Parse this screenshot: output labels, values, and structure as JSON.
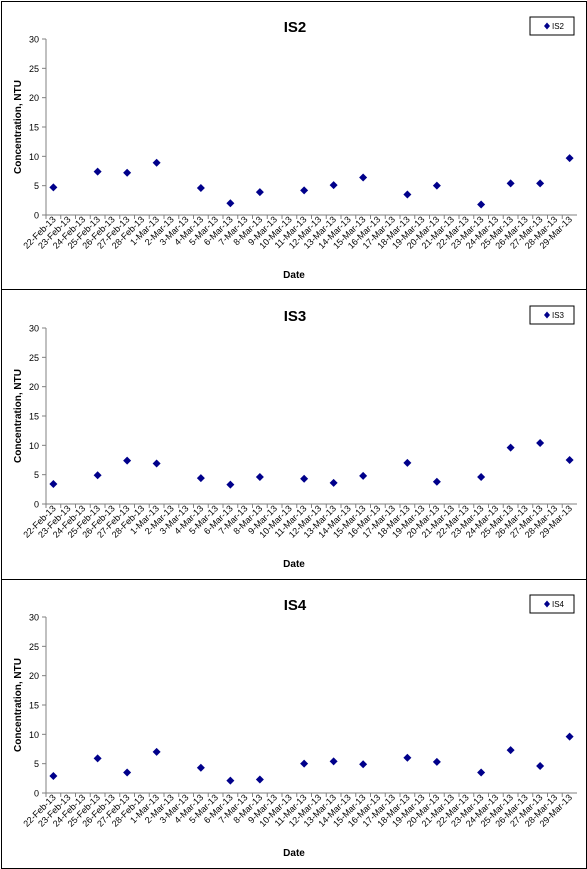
{
  "chart_data": [
    {
      "type": "scatter",
      "title": "IS2",
      "xlabel": "Date",
      "ylabel": "Concentration, NTU",
      "ylim": [
        0,
        30
      ],
      "y_ticks": [
        "0",
        "5",
        "10",
        "15",
        "20",
        "25",
        "30"
      ],
      "grid": false,
      "legend_position": "top-right",
      "series": [
        {
          "name": "IS2",
          "color": "#00008B",
          "points": [
            {
              "x": "22-Feb-13",
              "y": 4.7
            },
            {
              "x": "25-Feb-13",
              "y": 7.4
            },
            {
              "x": "27-Feb-13",
              "y": 7.2
            },
            {
              "x": "1-Mar-13",
              "y": 8.9
            },
            {
              "x": "4-Mar-13",
              "y": 4.6
            },
            {
              "x": "6-Mar-13",
              "y": 2.0
            },
            {
              "x": "8-Mar-13",
              "y": 3.9
            },
            {
              "x": "11-Mar-13",
              "y": 4.2
            },
            {
              "x": "13-Mar-13",
              "y": 5.1
            },
            {
              "x": "15-Mar-13",
              "y": 6.4
            },
            {
              "x": "18-Mar-13",
              "y": 3.5
            },
            {
              "x": "20-Mar-13",
              "y": 5.0
            },
            {
              "x": "23-Mar-13",
              "y": 1.8
            },
            {
              "x": "25-Mar-13",
              "y": 5.4
            },
            {
              "x": "27-Mar-13",
              "y": 5.4
            },
            {
              "x": "29-Mar-13",
              "y": 9.7
            }
          ]
        }
      ]
    },
    {
      "type": "scatter",
      "title": "IS3",
      "xlabel": "Date",
      "ylabel": "Concentration, NTU",
      "ylim": [
        0,
        30
      ],
      "y_ticks": [
        "0",
        "5",
        "10",
        "15",
        "20",
        "25",
        "30"
      ],
      "grid": false,
      "legend_position": "top-right",
      "series": [
        {
          "name": "IS3",
          "color": "#00008B",
          "points": [
            {
              "x": "22-Feb-13",
              "y": 3.4
            },
            {
              "x": "25-Feb-13",
              "y": 4.9
            },
            {
              "x": "27-Feb-13",
              "y": 7.4
            },
            {
              "x": "1-Mar-13",
              "y": 6.9
            },
            {
              "x": "4-Mar-13",
              "y": 4.4
            },
            {
              "x": "6-Mar-13",
              "y": 3.3
            },
            {
              "x": "8-Mar-13",
              "y": 4.6
            },
            {
              "x": "11-Mar-13",
              "y": 4.3
            },
            {
              "x": "13-Mar-13",
              "y": 3.6
            },
            {
              "x": "15-Mar-13",
              "y": 4.8
            },
            {
              "x": "18-Mar-13",
              "y": 7.0
            },
            {
              "x": "20-Mar-13",
              "y": 3.8
            },
            {
              "x": "23-Mar-13",
              "y": 4.6
            },
            {
              "x": "25-Mar-13",
              "y": 9.6
            },
            {
              "x": "27-Mar-13",
              "y": 10.4
            },
            {
              "x": "29-Mar-13",
              "y": 7.5
            }
          ]
        }
      ]
    },
    {
      "type": "scatter",
      "title": "IS4",
      "xlabel": "Date",
      "ylabel": "Concentration, NTU",
      "ylim": [
        0,
        30
      ],
      "y_ticks": [
        "0",
        "5",
        "10",
        "15",
        "20",
        "25",
        "30"
      ],
      "grid": false,
      "legend_position": "top-right",
      "series": [
        {
          "name": "IS4",
          "color": "#00008B",
          "points": [
            {
              "x": "22-Feb-13",
              "y": 2.9
            },
            {
              "x": "25-Feb-13",
              "y": 5.9
            },
            {
              "x": "27-Feb-13",
              "y": 3.5
            },
            {
              "x": "1-Mar-13",
              "y": 7.0
            },
            {
              "x": "4-Mar-13",
              "y": 4.3
            },
            {
              "x": "6-Mar-13",
              "y": 2.1
            },
            {
              "x": "8-Mar-13",
              "y": 2.3
            },
            {
              "x": "11-Mar-13",
              "y": 5.0
            },
            {
              "x": "13-Mar-13",
              "y": 5.4
            },
            {
              "x": "15-Mar-13",
              "y": 4.9
            },
            {
              "x": "18-Mar-13",
              "y": 6.0
            },
            {
              "x": "20-Mar-13",
              "y": 5.3
            },
            {
              "x": "23-Mar-13",
              "y": 3.5
            },
            {
              "x": "25-Mar-13",
              "y": 7.3
            },
            {
              "x": "27-Mar-13",
              "y": 4.6
            },
            {
              "x": "29-Mar-13",
              "y": 9.6
            }
          ]
        }
      ]
    }
  ],
  "x_ticks": [
    "22-Feb-13",
    "23-Feb-13",
    "24-Feb-13",
    "25-Feb-13",
    "26-Feb-13",
    "27-Feb-13",
    "28-Feb-13",
    "1-Mar-13",
    "2-Mar-13",
    "3-Mar-13",
    "4-Mar-13",
    "5-Mar-13",
    "6-Mar-13",
    "7-Mar-13",
    "8-Mar-13",
    "9-Mar-13",
    "10-Mar-13",
    "11-Mar-13",
    "12-Mar-13",
    "13-Mar-13",
    "14-Mar-13",
    "15-Mar-13",
    "16-Mar-13",
    "17-Mar-13",
    "18-Mar-13",
    "19-Mar-13",
    "20-Mar-13",
    "21-Mar-13",
    "22-Mar-13",
    "23-Mar-13",
    "24-Mar-13",
    "25-Mar-13",
    "26-Mar-13",
    "27-Mar-13",
    "28-Mar-13",
    "29-Mar-13"
  ]
}
